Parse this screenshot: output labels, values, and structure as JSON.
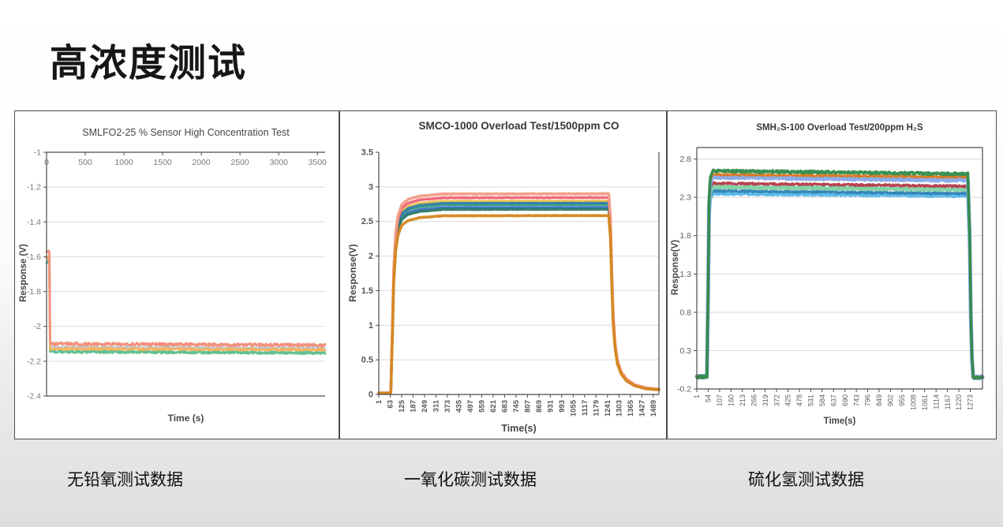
{
  "page": {
    "title": "高浓度测试"
  },
  "captions": {
    "left": "无铅氧测试数据",
    "middle": "一氧化碳测试数据",
    "right": "硫化氢测试数据"
  },
  "colors": {
    "panel_border": "#4d4d4d",
    "axis": "#4d4d4d",
    "gridline": "#d9d9d9",
    "tick_text_chart1": "#7b7b7b",
    "tick_text_chart2": "#555555",
    "tick_text_chart3": "#5f5f5f",
    "background_bottom": "#dedede"
  },
  "chart_data": [
    {
      "type": "line",
      "title": "SMLFO2-25 % Sensor High Concentration Test",
      "xlabel": "Time (s)",
      "ylabel": "Response (V)",
      "xlim": [
        0,
        3600
      ],
      "ylim": [
        -2.4,
        -1
      ],
      "x_axis_position": "top",
      "legend": "none",
      "borders": [
        "left",
        "top",
        "bottom"
      ],
      "gridlines": [
        -1.2,
        -1.4,
        -1.6,
        -1.8,
        -2,
        -2.2
      ],
      "ytick_values": [
        -1,
        -1.2,
        -1.4,
        -1.6,
        -1.8,
        -2,
        -2.2,
        -2.4
      ],
      "ytick_labels": [
        "-1",
        "-1.2",
        "-1.4",
        "-1.6",
        "-1.8",
        "-2",
        "-2.2",
        "-2.4"
      ],
      "xtick_values": [
        0,
        500,
        1000,
        1500,
        2000,
        2500,
        3000,
        3500
      ],
      "xtick_labels": [
        "0",
        "500",
        "1000",
        "1500",
        "2000",
        "2500",
        "3000",
        "3500"
      ],
      "series": [
        {
          "name": "o2-blue",
          "color": "#9DC3E6",
          "width": 1.6,
          "noise": 0.004,
          "points": [
            [
              0,
              -1.615
            ],
            [
              36,
              -1.615
            ],
            [
              46,
              -2.118
            ],
            [
              3600,
              -2.124
            ]
          ]
        },
        {
          "name": "o2-green",
          "color": "#5ABD8C",
          "width": 2.8,
          "noise": 0.007,
          "points": [
            [
              0,
              -1.63
            ],
            [
              36,
              -1.63
            ],
            [
              46,
              -2.145
            ],
            [
              3600,
              -2.152
            ]
          ]
        },
        {
          "name": "o2-amber",
          "color": "#F6B05A",
          "width": 2.8,
          "noise": 0.006,
          "points": [
            [
              0,
              -1.605
            ],
            [
              36,
              -1.605
            ],
            [
              46,
              -2.128
            ],
            [
              3600,
              -2.134
            ]
          ]
        },
        {
          "name": "o2-salmon",
          "color": "#F08C76",
          "width": 2.8,
          "noise": 0.008,
          "points": [
            [
              0,
              -1.572
            ],
            [
              36,
              -1.572
            ],
            [
              46,
              -2.1
            ],
            [
              3600,
              -2.108
            ]
          ]
        }
      ]
    },
    {
      "type": "line",
      "title": "SMCO-1000 Overload Test/1500ppm CO",
      "xlabel": "Time(s)",
      "ylabel": "Response(V)",
      "xlim": [
        1,
        1520
      ],
      "ylim": [
        0,
        3.5
      ],
      "x_axis_position": "bottom",
      "legend": "none",
      "borders": [
        "left",
        "bottom",
        "right"
      ],
      "gridlines": [
        0.5,
        1,
        1.5,
        2,
        2.5,
        3
      ],
      "ytick_values": [
        0,
        0.5,
        1,
        1.5,
        2,
        2.5,
        3,
        3.5
      ],
      "ytick_labels": [
        "0",
        "0.5",
        "1",
        "1.5",
        "2",
        "2.5",
        "3",
        "3.5"
      ],
      "xtick_values": [
        1,
        63,
        125,
        187,
        249,
        311,
        373,
        435,
        497,
        559,
        621,
        683,
        745,
        807,
        869,
        931,
        993,
        1055,
        1117,
        1179,
        1241,
        1303,
        1365,
        1427,
        1489
      ],
      "xtick_labels": [
        "1",
        "63",
        "125",
        "187",
        "249",
        "311",
        "373",
        "435",
        "497",
        "559",
        "621",
        "683",
        "745",
        "807",
        "869",
        "931",
        "993",
        "1055",
        "1117",
        "1179",
        "1241",
        "1303",
        "1365",
        "1427",
        "1489"
      ],
      "baseline": 0,
      "plateau_span": [
        350,
        1248
      ],
      "profile": [
        [
          1,
          0.007
        ],
        [
          66,
          0.007
        ],
        [
          74,
          0.3
        ],
        [
          82,
          0.62
        ],
        [
          92,
          0.8
        ],
        [
          105,
          0.89
        ],
        [
          125,
          0.945
        ],
        [
          160,
          0.972
        ],
        [
          220,
          0.988
        ],
        [
          350,
          0.999
        ],
        [
          1248,
          1.0
        ],
        [
          1257,
          0.88
        ],
        [
          1264,
          0.62
        ],
        [
          1272,
          0.4
        ],
        [
          1282,
          0.26
        ],
        [
          1295,
          0.17
        ],
        [
          1315,
          0.115
        ],
        [
          1345,
          0.075
        ],
        [
          1390,
          0.048
        ],
        [
          1450,
          0.032
        ],
        [
          1520,
          0.026
        ]
      ],
      "series": [
        {
          "name": "co-gold",
          "color": "#F0BE4A",
          "width": 3.2,
          "noise": 0.004,
          "plateau": 2.795
        },
        {
          "name": "co-skyblue",
          "color": "#6FB3E0",
          "width": 3.2,
          "noise": 0.004,
          "plateau": 2.73
        },
        {
          "name": "co-blue",
          "color": "#3D6FC0",
          "width": 3.2,
          "noise": 0.004,
          "plateau": 2.7
        },
        {
          "name": "co-green",
          "color": "#44A878",
          "width": 3.2,
          "noise": 0.004,
          "plateau": 2.745
        },
        {
          "name": "co-steelteal",
          "color": "#2E7FA8",
          "width": 3.2,
          "noise": 0.004,
          "plateau": 2.765
        },
        {
          "name": "co-darkteal",
          "color": "#2A7A66",
          "width": 3.2,
          "noise": 0.004,
          "plateau": 2.675
        },
        {
          "name": "co-red",
          "color": "#EC6272",
          "width": 3.4,
          "noise": 0.004,
          "plateau": 2.845
        },
        {
          "name": "co-salmon",
          "color": "#F29C86",
          "width": 3.6,
          "noise": 0.005,
          "plateau": 2.9
        },
        {
          "name": "co-orange",
          "color": "#D4861E",
          "width": 3.6,
          "noise": 0.003,
          "plateau": 2.585
        }
      ]
    },
    {
      "type": "line",
      "title": "SMH₂S-100 Overload Test/200ppm H₂S",
      "xlabel": "Time(s)",
      "ylabel": "Response(V)",
      "xlim": [
        1,
        1330
      ],
      "ylim": [
        -0.2,
        2.95
      ],
      "x_axis_position": "bottom",
      "legend": "none",
      "borders": [
        "left",
        "top",
        "right",
        "bottom"
      ],
      "gridlines": [
        0.3,
        0.8,
        1.3,
        1.8,
        2.3,
        2.8
      ],
      "ytick_values": [
        -0.2,
        0.3,
        0.8,
        1.3,
        1.8,
        2.3,
        2.8
      ],
      "ytick_labels": [
        "-0.2",
        "0.3",
        "0.8",
        "1.3",
        "1.8",
        "2.3",
        "2.8"
      ],
      "xtick_values": [
        1,
        54,
        107,
        160,
        213,
        266,
        319,
        372,
        425,
        478,
        531,
        584,
        637,
        690,
        743,
        796,
        849,
        902,
        955,
        1008,
        1061,
        1114,
        1167,
        1220,
        1273
      ],
      "xtick_labels": [
        "1",
        "54",
        "107",
        "160",
        "213",
        "266",
        "319",
        "372",
        "425",
        "478",
        "531",
        "584",
        "637",
        "690",
        "743",
        "796",
        "849",
        "902",
        "955",
        "1008",
        "1061",
        "1114",
        "1167",
        "1220",
        "1273"
      ],
      "baseline": -0.04,
      "plateau_span": [
        75,
        1262
      ],
      "profile": [
        [
          1,
          0.0
        ],
        [
          48,
          0.0
        ],
        [
          54,
          0.45
        ],
        [
          58,
          0.85
        ],
        [
          64,
          0.97
        ],
        [
          75,
          1.0
        ],
        [
          1262,
          1.0
        ],
        [
          1270,
          0.72
        ],
        [
          1276,
          0.3
        ],
        [
          1281,
          0.09
        ],
        [
          1287,
          -0.004
        ],
        [
          1300,
          -0.006
        ],
        [
          1315,
          -0.004
        ],
        [
          1330,
          0.0
        ]
      ],
      "series": [
        {
          "name": "h2s-sky",
          "color": "#56B7E8",
          "width": 4,
          "noise": 0.013,
          "plateau_start": 2.35,
          "plateau_end": 2.32
        },
        {
          "name": "h2s-teal",
          "color": "#2E7FB5",
          "width": 3,
          "noise": 0.012,
          "plateau_start": 2.385,
          "plateau_end": 2.35
        },
        {
          "name": "h2s-mint",
          "color": "#7ED0A2",
          "width": 4.5,
          "noise": 0.013,
          "plateau_start": 2.435,
          "plateau_end": 2.4
        },
        {
          "name": "h2s-crimson",
          "color": "#B23A48",
          "width": 3,
          "noise": 0.012,
          "plateau_start": 2.485,
          "plateau_end": 2.445
        },
        {
          "name": "h2s-cornflower",
          "color": "#84A8E8",
          "width": 5,
          "noise": 0.014,
          "plateau_start": 2.565,
          "plateau_end": 2.525
        },
        {
          "name": "h2s-orange",
          "color": "#DD7618",
          "width": 2.5,
          "noise": 0.012,
          "plateau_start": 2.6,
          "plateau_end": 2.565
        },
        {
          "name": "h2s-darkgreen",
          "color": "#2E8B4A",
          "width": 3.5,
          "noise": 0.016,
          "plateau_start": 2.645,
          "plateau_end": 2.605
        }
      ]
    }
  ]
}
